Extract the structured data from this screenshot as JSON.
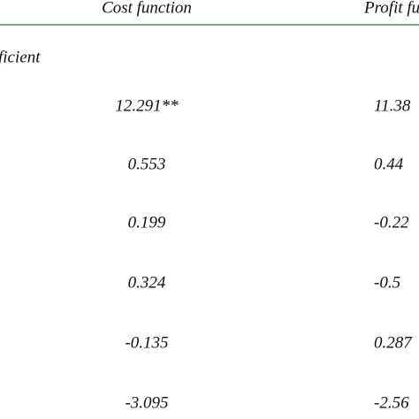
{
  "table": {
    "header": [
      "Cost function",
      "Profit fun"
    ],
    "section": "ficient",
    "rows": [
      [
        "12.291**",
        "11.38"
      ],
      [
        "0.553",
        "0.44"
      ],
      [
        "0.199",
        "-0.22"
      ],
      [
        "0.324",
        "-0.5"
      ],
      [
        "-0.135",
        "0.287"
      ],
      [
        "-3.095",
        "-2.56"
      ]
    ]
  }
}
